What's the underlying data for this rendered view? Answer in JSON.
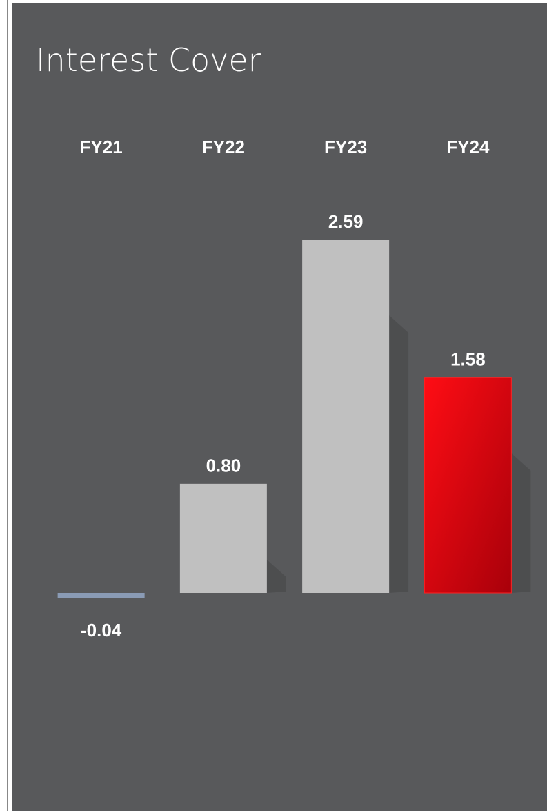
{
  "chart_data": {
    "type": "bar",
    "title": "Interest Cover",
    "categories": [
      "FY21",
      "FY22",
      "FY23",
      "FY24"
    ],
    "values": [
      -0.04,
      0.8,
      2.59,
      1.58
    ],
    "value_labels": [
      "-0.04",
      "0.80",
      "2.59",
      "1.58"
    ],
    "colors": [
      "#8a9bb5",
      "#c0c0c0",
      "#c0c0c0",
      "#e8070f"
    ]
  }
}
